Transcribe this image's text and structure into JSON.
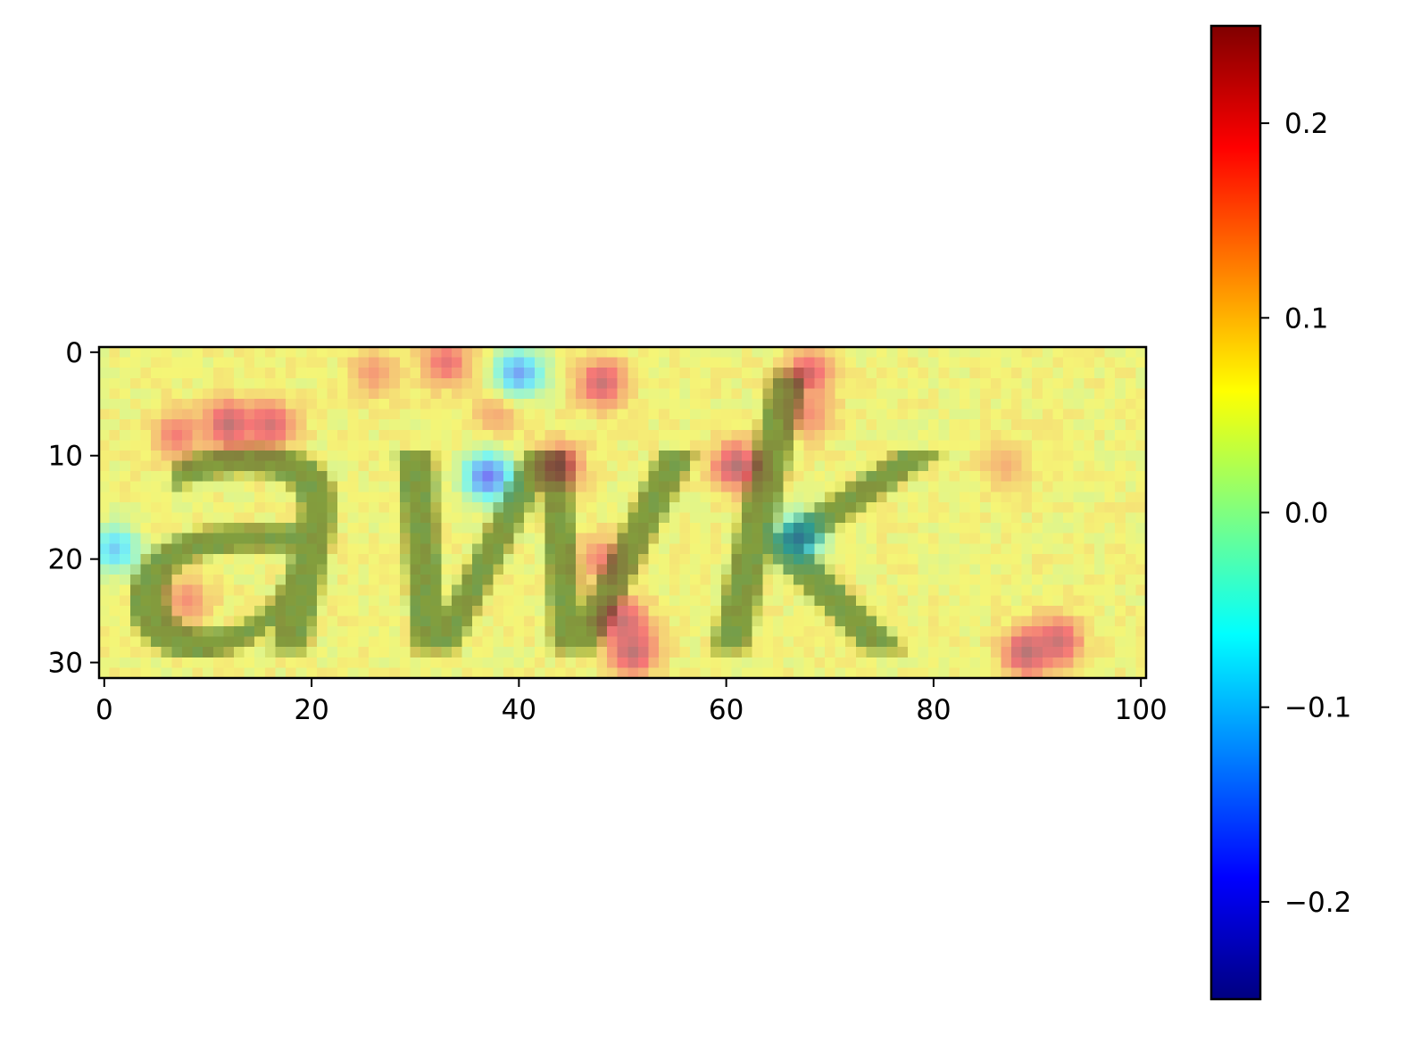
{
  "chart_data": {
    "type": "heatmap",
    "title": "",
    "xlabel": "",
    "ylabel": "",
    "image_shape": [
      32,
      101
    ],
    "xlim": [
      -0.5,
      100.5
    ],
    "ylim": [
      31.5,
      -0.5
    ],
    "x_ticks": [
      0,
      20,
      40,
      60,
      80,
      100
    ],
    "x_tick_labels": [
      "0",
      "20",
      "40",
      "60",
      "80",
      "100"
    ],
    "y_ticks": [
      0,
      10,
      20,
      30
    ],
    "y_tick_labels": [
      "0",
      "10",
      "20",
      "30"
    ],
    "grid": false,
    "colormap": "jet",
    "overlay_alpha": 0.5,
    "colorbar": {
      "vmin": -0.25,
      "vmax": 0.25,
      "ticks": [
        -0.2,
        -0.1,
        0.0,
        0.1,
        0.2
      ],
      "tick_labels": [
        "−0.2",
        "−0.1",
        "0.0",
        "0.1",
        "0.2"
      ]
    },
    "background_value": 0.06,
    "handwriting_text": "awk",
    "handwriting_value": -0.04,
    "hotspots": [
      {
        "x": 12,
        "y": 7,
        "value": 0.24
      },
      {
        "x": 16,
        "y": 7,
        "value": 0.22
      },
      {
        "x": 7,
        "y": 8,
        "value": 0.18
      },
      {
        "x": 8,
        "y": 24,
        "value": 0.16
      },
      {
        "x": 26,
        "y": 2,
        "value": 0.15
      },
      {
        "x": 33,
        "y": 1,
        "value": 0.2
      },
      {
        "x": 48,
        "y": 3,
        "value": 0.23
      },
      {
        "x": 44,
        "y": 11,
        "value": 0.2
      },
      {
        "x": 61,
        "y": 11,
        "value": 0.25
      },
      {
        "x": 68,
        "y": 2,
        "value": 0.21
      },
      {
        "x": 68,
        "y": 6,
        "value": 0.16
      },
      {
        "x": 50,
        "y": 26,
        "value": 0.23
      },
      {
        "x": 51,
        "y": 29,
        "value": 0.24
      },
      {
        "x": 48,
        "y": 20,
        "value": 0.17
      },
      {
        "x": 89,
        "y": 29,
        "value": 0.25
      },
      {
        "x": 92,
        "y": 28,
        "value": 0.23
      },
      {
        "x": 87,
        "y": 11,
        "value": 0.13
      },
      {
        "x": 38,
        "y": 6,
        "value": 0.14
      }
    ],
    "coldspots": [
      {
        "x": 40,
        "y": 2,
        "value": -0.14
      },
      {
        "x": 37,
        "y": 12,
        "value": -0.18
      },
      {
        "x": 67,
        "y": 18,
        "value": -0.12
      },
      {
        "x": 1,
        "y": 19,
        "value": -0.1
      }
    ]
  }
}
